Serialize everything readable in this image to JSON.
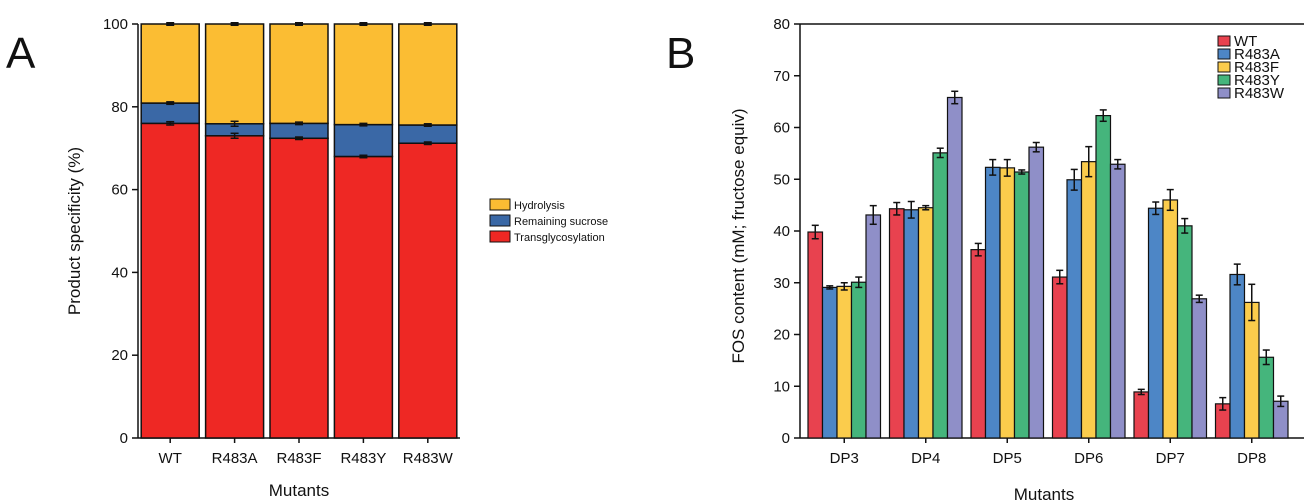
{
  "chart_data": [
    {
      "panel": "A",
      "type": "bar",
      "stacked": true,
      "categories": [
        "WT",
        "R483A",
        "R483F",
        "R483Y",
        "R483W"
      ],
      "series": [
        {
          "name": "Transglycosylation",
          "color": "#ee2824",
          "values": [
            76.0,
            73.0,
            72.4,
            68.0,
            71.2
          ],
          "errors": [
            0.4,
            0.6,
            0.3,
            0.3,
            0.3
          ]
        },
        {
          "name": "Remaining sucrose",
          "color": "#3a68a6",
          "values": [
            4.9,
            2.9,
            3.6,
            7.7,
            4.4
          ],
          "errors": [
            0.3,
            0.6,
            0.3,
            0.3,
            0.3
          ]
        },
        {
          "name": "Hydrolysis",
          "color": "#fbbd33",
          "values": [
            19.1,
            24.1,
            24.0,
            24.3,
            24.4
          ],
          "errors": [
            0.3,
            0.3,
            0.3,
            0.3,
            0.3
          ]
        }
      ],
      "legend_order": [
        "Hydrolysis",
        "Remaining sucrose",
        "Transglycosylation"
      ],
      "ylim": [
        0,
        100
      ],
      "yticks": [
        0,
        20,
        40,
        60,
        80,
        100
      ],
      "xlabel": "Mutants",
      "ylabel": "Product specificity (%)",
      "legend_position": "right",
      "grid": false
    },
    {
      "panel": "B",
      "type": "bar",
      "stacked": false,
      "categories": [
        "DP3",
        "DP4",
        "DP5",
        "DP6",
        "DP7",
        "DP8"
      ],
      "series": [
        {
          "name": "WT",
          "color": "#e8424f",
          "values": [
            39.8,
            44.3,
            36.4,
            31.1,
            8.9,
            6.6
          ],
          "errors": [
            1.3,
            1.2,
            1.2,
            1.3,
            0.5,
            1.2
          ]
        },
        {
          "name": "R483A",
          "color": "#4d86c6",
          "values": [
            29.1,
            44.1,
            52.3,
            49.9,
            44.4,
            31.6
          ],
          "errors": [
            0.3,
            1.6,
            1.5,
            2.0,
            1.2,
            2.0
          ]
        },
        {
          "name": "R483F",
          "color": "#fbcc4c",
          "values": [
            29.3,
            44.5,
            52.2,
            53.4,
            46.0,
            26.2
          ],
          "errors": [
            0.7,
            0.4,
            1.6,
            2.9,
            2.0,
            3.5
          ]
        },
        {
          "name": "R483Y",
          "color": "#45b57c",
          "values": [
            30.1,
            55.1,
            51.4,
            62.3,
            41.0,
            15.6
          ],
          "errors": [
            1.0,
            0.9,
            0.4,
            1.1,
            1.4,
            1.4
          ]
        },
        {
          "name": "R483W",
          "color": "#8f8fc8",
          "values": [
            43.1,
            65.8,
            56.2,
            52.9,
            26.9,
            7.1
          ],
          "errors": [
            1.8,
            1.2,
            0.9,
            0.9,
            0.7,
            1.0
          ]
        }
      ],
      "ylim": [
        0,
        80
      ],
      "yticks": [
        0,
        10,
        20,
        30,
        40,
        50,
        60,
        70,
        80
      ],
      "xlabel": "Mutants",
      "ylabel": "FOS content (mM; fructose equiv)",
      "legend_position": "top-right",
      "grid": false
    }
  ]
}
